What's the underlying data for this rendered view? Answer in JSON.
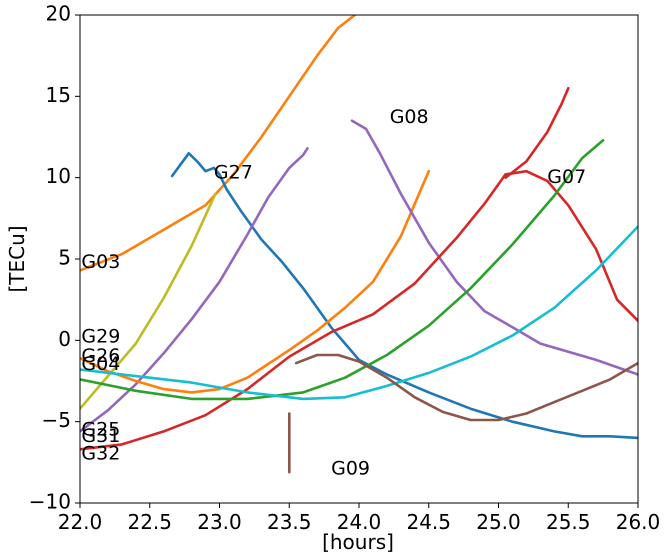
{
  "chart_data": {
    "type": "line",
    "title": "",
    "xlabel": "[hours]",
    "ylabel": "[TECu]",
    "xlim": [
      22.0,
      26.0
    ],
    "ylim": [
      -10,
      20
    ],
    "xticks": [
      22.0,
      22.5,
      23.0,
      23.5,
      24.0,
      24.5,
      25.0,
      25.5,
      26.0
    ],
    "xtick_labels": [
      "22.0",
      "22.5",
      "23.0",
      "23.5",
      "24.0",
      "24.5",
      "25.0",
      "25.5",
      "26.0"
    ],
    "yticks": [
      -10,
      -5,
      0,
      5,
      10,
      15,
      20
    ],
    "ytick_labels": [
      "−10",
      "−5",
      "0",
      "5",
      "10",
      "15",
      "20"
    ],
    "grid": false,
    "legend": "none",
    "series": [
      {
        "color": "#ff7f0e",
        "x": [
          22.0,
          22.3,
          22.6,
          22.9,
          23.1,
          23.3,
          23.5,
          23.7,
          23.85,
          23.97
        ],
        "y": [
          4.3,
          5.3,
          6.8,
          8.3,
          10.2,
          12.5,
          15.0,
          17.5,
          19.2,
          20.0
        ]
      },
      {
        "color": "#1f77b4",
        "x": [
          22.66,
          22.72,
          22.78,
          22.84,
          22.9,
          22.96,
          23.0,
          23.05,
          23.15,
          23.3,
          23.45,
          23.6,
          23.8,
          24.0,
          24.2,
          24.5,
          24.8,
          25.1,
          25.4,
          25.6,
          25.8,
          26.0
        ],
        "y": [
          10.1,
          10.8,
          11.5,
          11.0,
          10.4,
          10.6,
          10.2,
          9.3,
          8.0,
          6.2,
          4.8,
          3.2,
          0.8,
          -1.2,
          -2.1,
          -3.2,
          -4.2,
          -5.0,
          -5.6,
          -5.9,
          -5.9,
          -6.0
        ]
      },
      {
        "color": "#bcbd22",
        "x": [
          22.0,
          22.2,
          22.4,
          22.6,
          22.8,
          22.97
        ],
        "y": [
          -4.2,
          -2.2,
          -0.2,
          2.6,
          5.8,
          9.0
        ]
      },
      {
        "color": "#9467bd",
        "x": [
          22.0,
          22.2,
          22.4,
          22.6,
          22.8,
          23.0,
          23.2,
          23.35,
          23.5,
          23.6,
          23.63
        ],
        "y": [
          -5.6,
          -4.3,
          -2.7,
          -0.8,
          1.3,
          3.6,
          6.5,
          8.8,
          10.6,
          11.4,
          11.8
        ]
      },
      {
        "color": "#ff7f0e",
        "x": [
          22.0,
          22.2,
          22.4,
          22.6,
          22.8,
          23.0,
          23.2,
          23.5,
          23.7,
          23.9,
          24.1,
          24.3,
          24.45,
          24.5
        ],
        "y": [
          -1.1,
          -1.9,
          -2.5,
          -3.0,
          -3.2,
          -3.0,
          -2.3,
          -0.6,
          0.6,
          2.0,
          3.6,
          6.4,
          9.4,
          10.4
        ]
      },
      {
        "color": "#9467bd",
        "x": [
          23.95,
          24.05,
          24.15,
          24.3,
          24.5,
          24.7,
          24.9,
          25.1,
          25.3,
          25.5,
          25.7,
          25.9,
          26.0
        ],
        "y": [
          13.5,
          13.0,
          11.5,
          9.0,
          6.0,
          3.6,
          1.8,
          0.8,
          -0.2,
          -0.7,
          -1.2,
          -1.8,
          -2.1
        ]
      },
      {
        "color": "#d62728",
        "x": [
          22.0,
          22.3,
          22.6,
          22.9,
          23.2,
          23.5,
          23.8,
          24.1,
          24.4,
          24.7,
          24.9,
          25.05,
          25.2,
          25.35,
          25.5,
          25.7,
          25.85,
          26.0
        ],
        "y": [
          -6.7,
          -6.4,
          -5.6,
          -4.6,
          -3.0,
          -1.0,
          0.5,
          1.6,
          3.5,
          6.3,
          8.4,
          10.2,
          10.4,
          9.8,
          8.3,
          5.6,
          2.5,
          1.2
        ]
      },
      {
        "color": "#d62728",
        "x": [
          25.05,
          25.2,
          25.35,
          25.45,
          25.5
        ],
        "y": [
          10.0,
          11.0,
          12.8,
          14.5,
          15.5
        ]
      },
      {
        "color": "#2ca02c",
        "x": [
          22.0,
          22.4,
          22.8,
          23.2,
          23.6,
          23.9,
          24.2,
          24.5,
          24.8,
          25.1,
          25.4,
          25.6,
          25.75
        ],
        "y": [
          -2.4,
          -3.1,
          -3.6,
          -3.6,
          -3.2,
          -2.3,
          -0.9,
          0.9,
          3.2,
          5.9,
          8.9,
          11.2,
          12.3
        ]
      },
      {
        "color": "#17becf",
        "x": [
          22.0,
          22.4,
          22.8,
          23.2,
          23.6,
          23.9,
          24.2,
          24.5,
          24.8,
          25.1,
          25.4,
          25.7,
          26.0
        ],
        "y": [
          -1.8,
          -2.2,
          -2.6,
          -3.2,
          -3.6,
          -3.5,
          -2.8,
          -2.0,
          -1.0,
          0.3,
          2.0,
          4.3,
          7.0
        ]
      },
      {
        "color": "#8c564b",
        "x": [
          23.55,
          23.7,
          23.85,
          24.0,
          24.2,
          24.4,
          24.6,
          24.8,
          25.0,
          25.2,
          25.4,
          25.6,
          25.8,
          26.0
        ],
        "y": [
          -1.4,
          -0.9,
          -0.9,
          -1.3,
          -2.3,
          -3.5,
          -4.4,
          -4.9,
          -4.9,
          -4.5,
          -3.8,
          -3.1,
          -2.4,
          -1.4
        ]
      },
      {
        "color": "#8c564b",
        "x": [
          23.5,
          23.5
        ],
        "y": [
          -4.5,
          -8.1
        ]
      }
    ],
    "annotations": [
      {
        "text": "G27",
        "x": 22.96,
        "y": 10.3
      },
      {
        "text": "G08",
        "x": 24.22,
        "y": 13.7
      },
      {
        "text": "G07",
        "x": 25.35,
        "y": 10.0
      },
      {
        "text": "G03",
        "x": 22.01,
        "y": 4.8
      },
      {
        "text": "G29",
        "x": 22.01,
        "y": 0.2
      },
      {
        "text": "G26",
        "x": 22.01,
        "y": -1.0
      },
      {
        "text": "G04",
        "x": 22.01,
        "y": -1.5
      },
      {
        "text": "G25",
        "x": 22.01,
        "y": -5.5
      },
      {
        "text": "G31",
        "x": 22.01,
        "y": -5.9
      },
      {
        "text": "G32",
        "x": 22.01,
        "y": -7.0
      },
      {
        "text": "G09",
        "x": 23.8,
        "y": -7.9
      }
    ]
  }
}
